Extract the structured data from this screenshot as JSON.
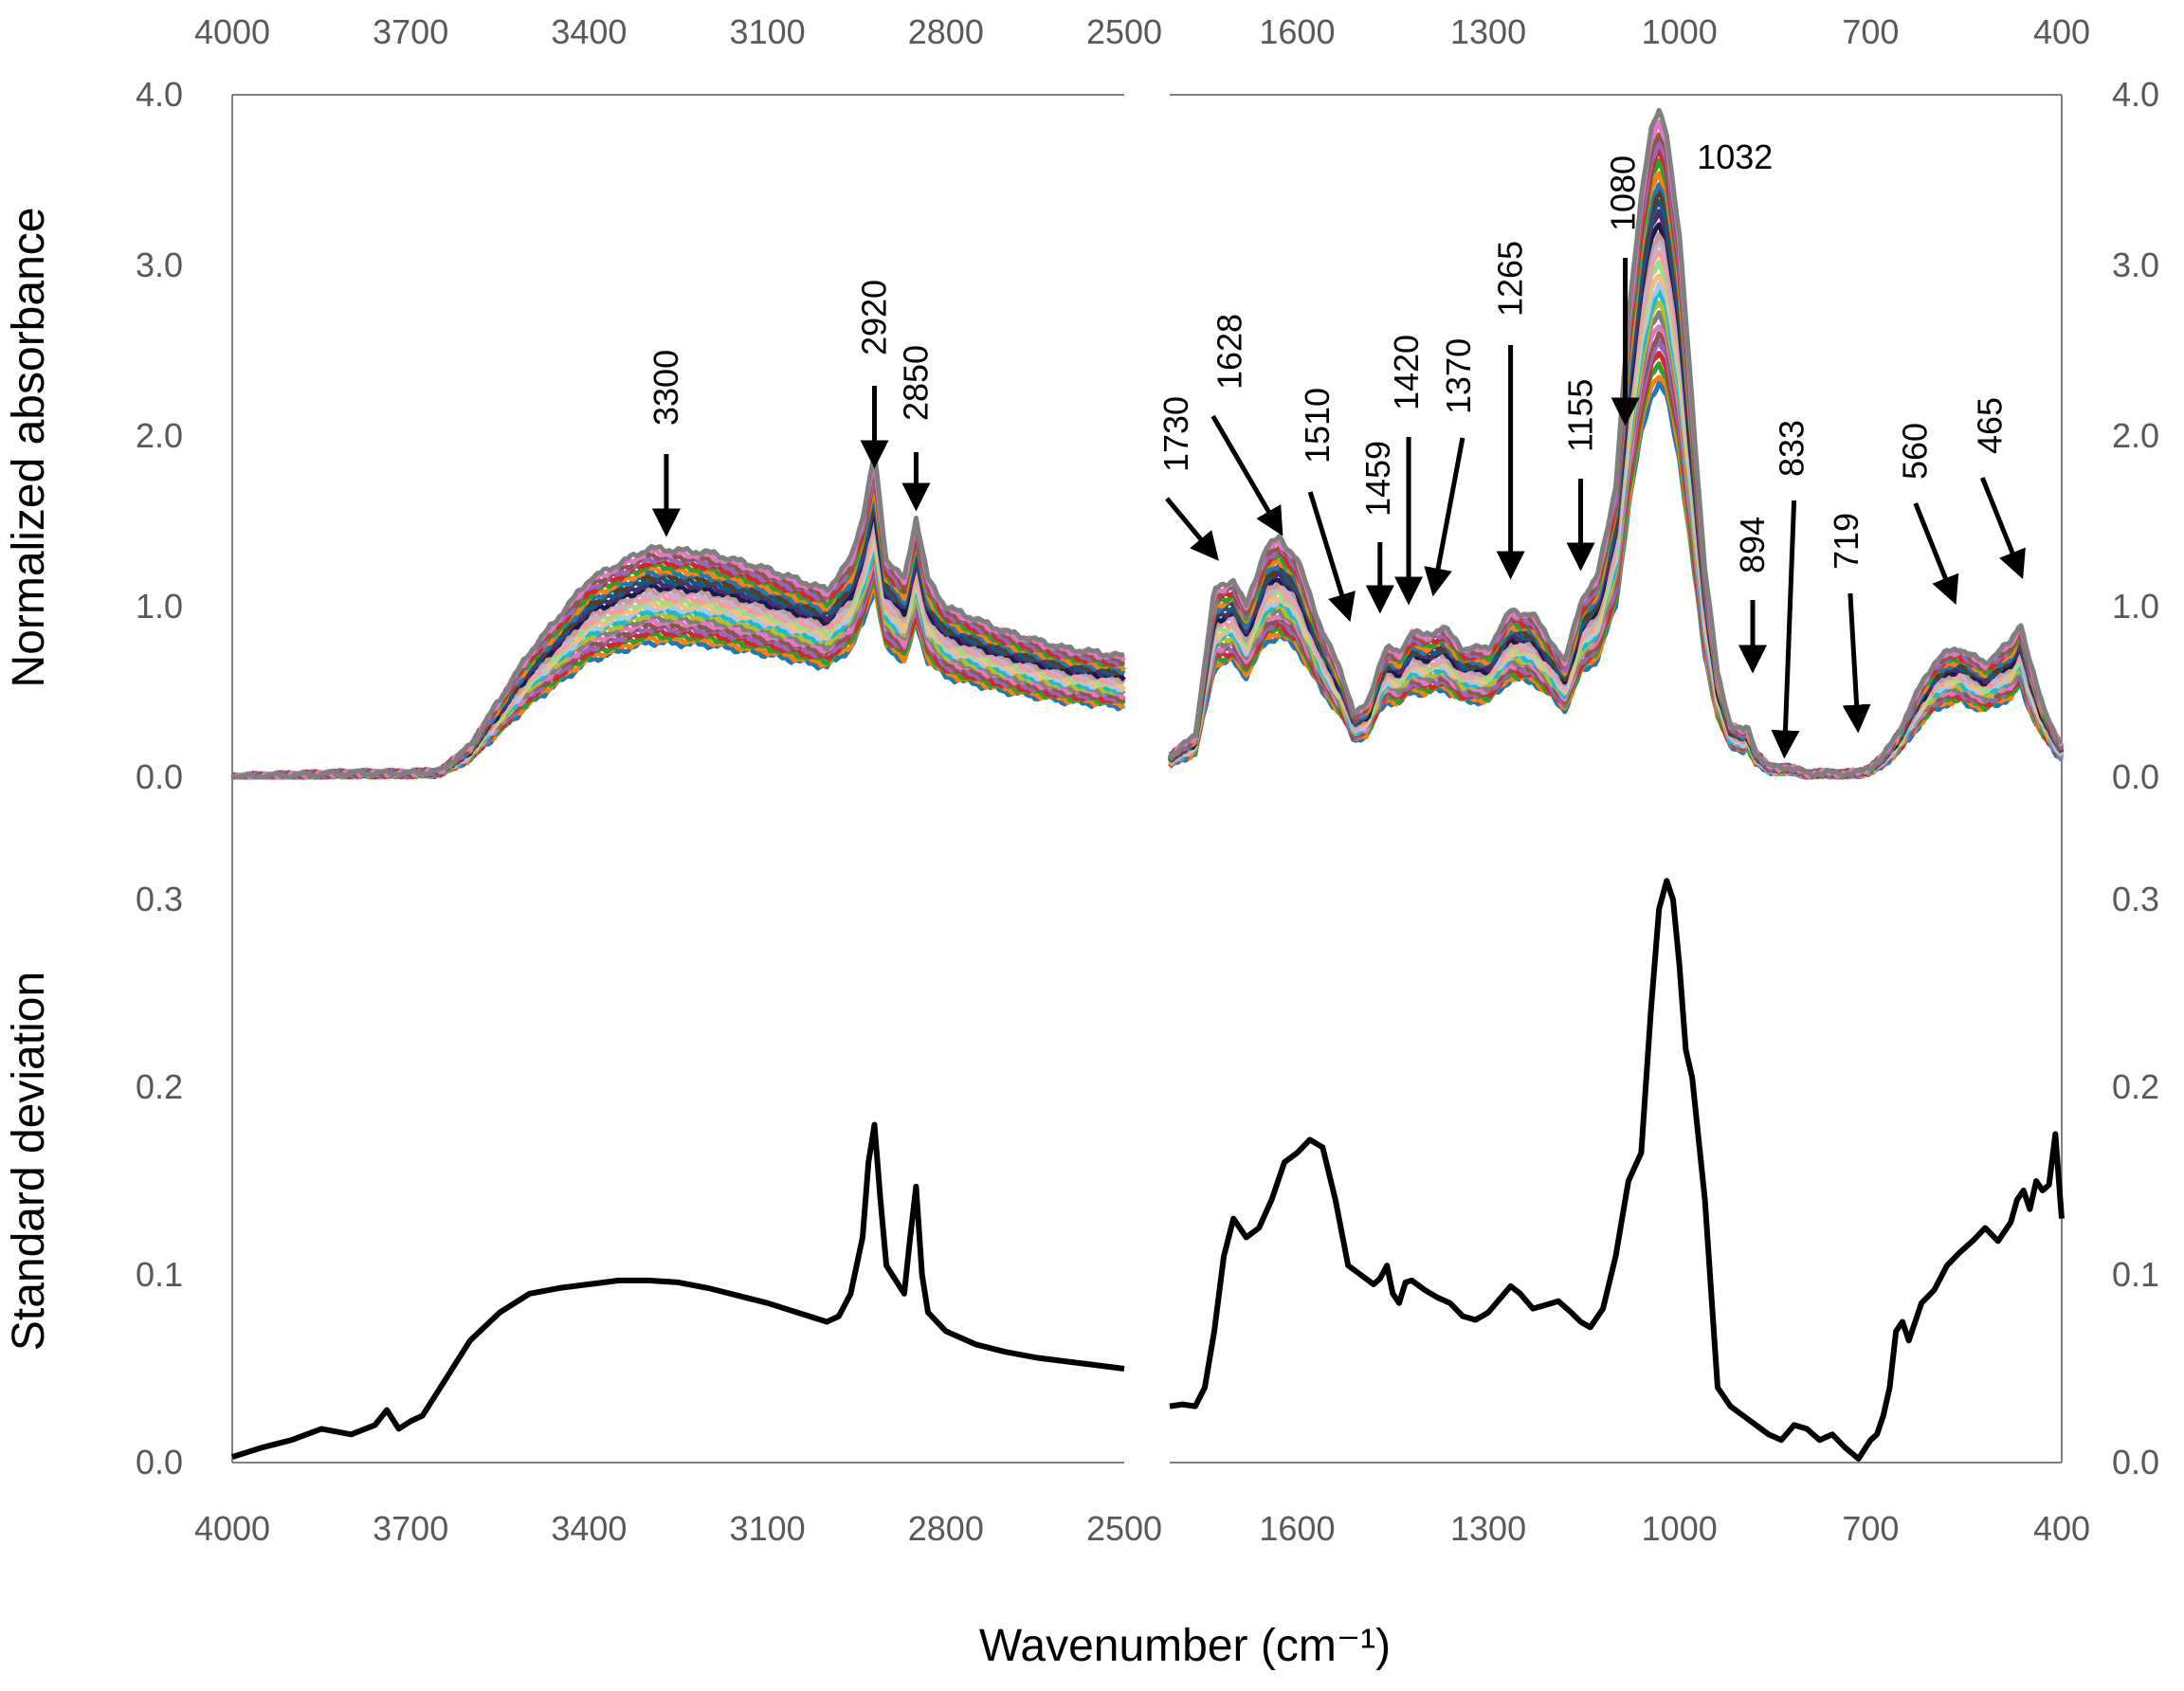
{
  "chart_data": {
    "type": "line",
    "title": "",
    "xlabel": "Wavenumber (cm⁻¹)",
    "panels": {
      "left_xlim": [
        4000,
        2500
      ],
      "right_xlim": [
        1800,
        400
      ],
      "left_ticks": [
        "4000",
        "3700",
        "3400",
        "3100",
        "2800",
        "2500"
      ],
      "right_ticks": [
        "1600",
        "1300",
        "1000",
        "700",
        "400"
      ]
    },
    "top": {
      "ylabel": "Normalized absorbance",
      "ylim": [
        0,
        4
      ],
      "yticks": [
        "0.0",
        "1.0",
        "2.0",
        "3.0",
        "4.0"
      ],
      "series_note": "many overlapping sample spectra",
      "mean_x": [
        4000,
        3900,
        3800,
        3700,
        3650,
        3600,
        3500,
        3400,
        3300,
        3200,
        3100,
        3000,
        2960,
        2940,
        2920,
        2900,
        2870,
        2850,
        2830,
        2800,
        2700,
        2600,
        2500,
        1800,
        1760,
        1730,
        1700,
        1680,
        1650,
        1628,
        1600,
        1560,
        1530,
        1510,
        1490,
        1470,
        1459,
        1440,
        1420,
        1400,
        1370,
        1340,
        1300,
        1265,
        1230,
        1200,
        1180,
        1155,
        1130,
        1100,
        1080,
        1060,
        1045,
        1032,
        1020,
        1000,
        980,
        960,
        940,
        920,
        900,
        894,
        880,
        860,
        833,
        800,
        760,
        719,
        700,
        680,
        650,
        620,
        600,
        580,
        560,
        540,
        520,
        500,
        480,
        465,
        450,
        430,
        410,
        400
      ],
      "mean_y": [
        0.0,
        0.01,
        0.02,
        0.02,
        0.03,
        0.15,
        0.6,
        0.95,
        1.1,
        1.08,
        1.0,
        0.9,
        1.05,
        1.25,
        1.55,
        1.05,
        0.95,
        1.25,
        0.95,
        0.82,
        0.7,
        0.62,
        0.58,
        0.1,
        0.2,
        0.9,
        0.95,
        0.82,
        1.1,
        1.15,
        1.05,
        0.7,
        0.5,
        0.3,
        0.35,
        0.55,
        0.62,
        0.6,
        0.7,
        0.68,
        0.72,
        0.62,
        0.62,
        0.8,
        0.78,
        0.65,
        0.55,
        0.85,
        0.95,
        1.4,
        2.2,
        2.8,
        3.1,
        3.2,
        3.1,
        2.6,
        1.8,
        1.0,
        0.5,
        0.25,
        0.22,
        0.25,
        0.12,
        0.05,
        0.05,
        0.02,
        0.02,
        0.02,
        0.05,
        0.1,
        0.25,
        0.45,
        0.55,
        0.6,
        0.62,
        0.58,
        0.55,
        0.6,
        0.65,
        0.75,
        0.55,
        0.35,
        0.2,
        0.15
      ],
      "colors": [
        "#1f77b4",
        "#ff7f0e",
        "#2ca02c",
        "#d62728",
        "#9467bd",
        "#8c564b",
        "#e377c2",
        "#7f7f7f",
        "#bcbd22",
        "#17becf",
        "#aec7e8",
        "#ffbb78",
        "#98df8a",
        "#ff9896",
        "#c5b0d5",
        "#c49c94",
        "#1a1a4d",
        "#4b2d6b",
        "#0f5a8a",
        "#5c3a1e"
      ],
      "annotations": [
        {
          "label": "3300",
          "x": 3300
        },
        {
          "label": "2920",
          "x": 2920
        },
        {
          "label": "2850",
          "x": 2850
        },
        {
          "label": "1730",
          "x": 1730
        },
        {
          "label": "1628",
          "x": 1628
        },
        {
          "label": "1510",
          "x": 1510
        },
        {
          "label": "1459",
          "x": 1459
        },
        {
          "label": "1420",
          "x": 1420
        },
        {
          "label": "1370",
          "x": 1370
        },
        {
          "label": "1265",
          "x": 1265
        },
        {
          "label": "1155",
          "x": 1155
        },
        {
          "label": "1080",
          "x": 1080
        },
        {
          "label": "1032",
          "x": 1032
        },
        {
          "label": "894",
          "x": 894
        },
        {
          "label": "833",
          "x": 833
        },
        {
          "label": "719",
          "x": 719
        },
        {
          "label": "560",
          "x": 560
        },
        {
          "label": "465",
          "x": 465
        }
      ]
    },
    "bottom": {
      "ylabel": "Standard deviation",
      "ylim": [
        0,
        0.35
      ],
      "yticks": [
        "0.0",
        "0.1",
        "0.2",
        "0.3"
      ],
      "color": "#000000",
      "left_x": [
        4000,
        3950,
        3900,
        3850,
        3800,
        3760,
        3740,
        3720,
        3700,
        3680,
        3650,
        3600,
        3550,
        3500,
        3450,
        3400,
        3350,
        3300,
        3250,
        3200,
        3150,
        3100,
        3050,
        3000,
        2980,
        2960,
        2940,
        2930,
        2920,
        2910,
        2900,
        2890,
        2880,
        2870,
        2860,
        2850,
        2840,
        2830,
        2800,
        2750,
        2700,
        2650,
        2600,
        2550,
        2500
      ],
      "left_y": [
        0.003,
        0.008,
        0.012,
        0.018,
        0.015,
        0.02,
        0.028,
        0.018,
        0.022,
        0.025,
        0.04,
        0.065,
        0.08,
        0.09,
        0.093,
        0.095,
        0.097,
        0.097,
        0.096,
        0.093,
        0.089,
        0.085,
        0.08,
        0.075,
        0.078,
        0.09,
        0.12,
        0.16,
        0.18,
        0.14,
        0.105,
        0.1,
        0.095,
        0.09,
        0.12,
        0.147,
        0.1,
        0.08,
        0.07,
        0.063,
        0.059,
        0.056,
        0.054,
        0.052,
        0.05
      ],
      "right_x": [
        1800,
        1780,
        1760,
        1745,
        1730,
        1715,
        1700,
        1680,
        1660,
        1640,
        1620,
        1600,
        1580,
        1560,
        1540,
        1520,
        1500,
        1480,
        1470,
        1459,
        1450,
        1440,
        1430,
        1420,
        1400,
        1380,
        1360,
        1340,
        1320,
        1300,
        1280,
        1265,
        1250,
        1230,
        1210,
        1190,
        1170,
        1155,
        1140,
        1120,
        1100,
        1080,
        1060,
        1045,
        1032,
        1020,
        1010,
        1000,
        990,
        980,
        960,
        940,
        920,
        900,
        880,
        860,
        840,
        820,
        800,
        780,
        760,
        740,
        719,
        700,
        690,
        680,
        670,
        660,
        650,
        640,
        620,
        600,
        580,
        560,
        540,
        520,
        500,
        480,
        470,
        460,
        450,
        440,
        430,
        420,
        410,
        400
      ],
      "right_y": [
        0.03,
        0.031,
        0.03,
        0.04,
        0.07,
        0.11,
        0.13,
        0.12,
        0.125,
        0.14,
        0.16,
        0.165,
        0.172,
        0.168,
        0.14,
        0.105,
        0.1,
        0.095,
        0.098,
        0.105,
        0.09,
        0.085,
        0.096,
        0.097,
        0.092,
        0.088,
        0.085,
        0.078,
        0.076,
        0.08,
        0.088,
        0.094,
        0.09,
        0.082,
        0.084,
        0.086,
        0.08,
        0.075,
        0.072,
        0.082,
        0.11,
        0.15,
        0.165,
        0.24,
        0.295,
        0.31,
        0.3,
        0.265,
        0.22,
        0.205,
        0.14,
        0.04,
        0.03,
        0.025,
        0.02,
        0.015,
        0.012,
        0.02,
        0.018,
        0.012,
        0.015,
        0.008,
        0.002,
        0.012,
        0.015,
        0.025,
        0.04,
        0.07,
        0.075,
        0.065,
        0.085,
        0.092,
        0.105,
        0.112,
        0.118,
        0.125,
        0.118,
        0.128,
        0.14,
        0.145,
        0.135,
        0.15,
        0.145,
        0.148,
        0.175,
        0.13
      ]
    }
  }
}
